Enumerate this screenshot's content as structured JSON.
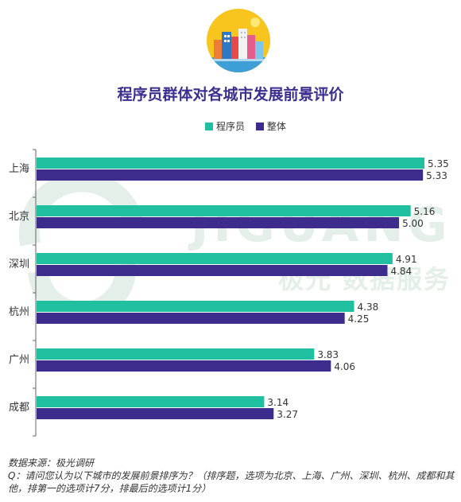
{
  "header": {
    "title": "程序员群体对各城市发展前景评价"
  },
  "icons": {
    "logo": "city-skyline-icon"
  },
  "watermark": {
    "brand_en": "JIGUANG",
    "brand_cn": "极光 数据服务"
  },
  "colors": {
    "programmer": "#1fbf9f",
    "overall": "#3e2b8e",
    "axis": "#666666"
  },
  "chart_data": {
    "type": "bar",
    "orientation": "horizontal",
    "title": "程序员群体对各城市发展前景评价",
    "categories": [
      "上海",
      "北京",
      "深圳",
      "杭州",
      "广州",
      "成都"
    ],
    "series": [
      {
        "name": "程序员",
        "values": [
          5.35,
          5.16,
          4.91,
          4.38,
          3.83,
          3.14
        ],
        "labels": [
          "5.35",
          "5.16",
          "4.91",
          "4.38",
          "3.83",
          "3.14"
        ]
      },
      {
        "name": "整体",
        "values": [
          5.33,
          5.0,
          4.84,
          4.25,
          4.06,
          3.27
        ],
        "labels": [
          "5.33",
          "5.00",
          "4.84",
          "4.25",
          "4.06",
          "3.27"
        ]
      }
    ],
    "xlim": [
      0,
      5.35
    ],
    "legend_position": "top-center",
    "grid": false
  },
  "footer": {
    "source": "数据来源：极光调研",
    "question": "Q：请问您认为以下城市的发展前景排序为？（排序题，选项为北京、上海、广州、深圳、杭州、成都和其他，排第一的选项计7分，排最后的选项计1分）"
  }
}
